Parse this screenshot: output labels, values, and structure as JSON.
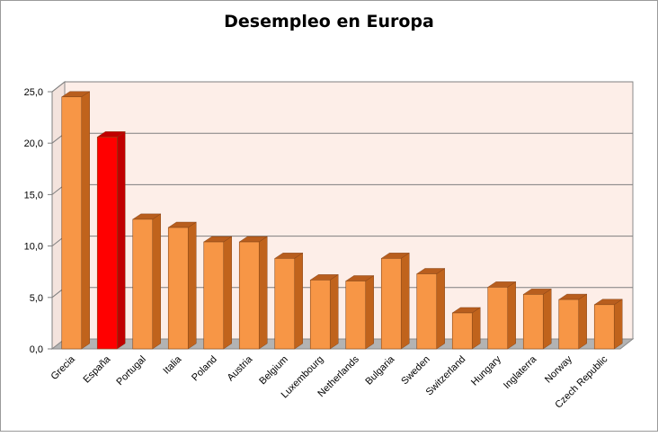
{
  "chart_data": {
    "type": "bar",
    "title": "Desempleo en Europa",
    "xlabel": "",
    "ylabel": "",
    "ylim": [
      0,
      25
    ],
    "yticks": [
      "0,0",
      "5,0",
      "10,0",
      "15,0",
      "20,0",
      "25,0"
    ],
    "grid": true,
    "legend": "none",
    "categories": [
      "Grecia",
      "España",
      "Portugal",
      "Italia",
      "Poland",
      "Austria",
      "Belgium",
      "Luxembourg",
      "Netherlands",
      "Bulgaria",
      "Sweden",
      "Switzerland",
      "Hungary",
      "Inglaterra",
      "Norway",
      "Czech Republic"
    ],
    "values": [
      24.5,
      20.6,
      12.6,
      11.8,
      10.4,
      10.4,
      8.8,
      6.7,
      6.6,
      8.8,
      7.3,
      3.5,
      6.0,
      5.3,
      4.8,
      4.3
    ],
    "highlight_index": 1,
    "colors": {
      "bar": "#f79646",
      "bar_side": "#c0631c",
      "bar_top": "#b85e1e",
      "highlight": "#ff0000",
      "highlight_side": "#c00000",
      "wall": "#fdeee8",
      "floor": "#b3b3b3"
    }
  }
}
